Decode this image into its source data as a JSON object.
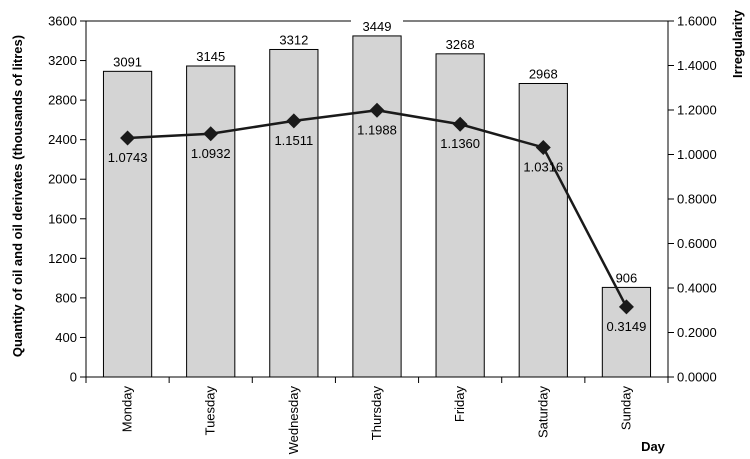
{
  "chart_data": {
    "type": "bar+line",
    "categories": [
      "Monday",
      "Tuesday",
      "Wednesday",
      "Thursday",
      "Friday",
      "Saturday",
      "Sunday"
    ],
    "series": [
      {
        "type": "bar",
        "axis": "left",
        "values": [
          3091,
          3145,
          3312,
          3449,
          3268,
          2968,
          906
        ]
      },
      {
        "type": "line",
        "axis": "right",
        "values": [
          1.0743,
          1.0932,
          1.1511,
          1.1988,
          1.136,
          1.0316,
          0.3149
        ]
      }
    ],
    "data_labels": {
      "bar": [
        "3091",
        "3145",
        "3312",
        "3449",
        "3268",
        "2968",
        "906"
      ],
      "line": [
        "1.0743",
        "1.0932",
        "1.1511",
        "1.1988",
        "1.1360",
        "1.0316",
        "0.3149"
      ]
    },
    "ylabel": "Quantity of oil and oil derivates (thousands of litres)",
    "y2label": "Irregularity",
    "xlabel": "Day",
    "ylim": [
      0,
      3600
    ],
    "y2lim": [
      0,
      1.6
    ],
    "yticks": [
      "0",
      "400",
      "800",
      "1200",
      "1600",
      "2000",
      "2400",
      "2800",
      "3200",
      "3600"
    ],
    "y2ticks": [
      "0.0000",
      "0.2000",
      "0.4000",
      "0.6000",
      "0.8000",
      "1.0000",
      "1.2000",
      "1.4000",
      "1.6000"
    ],
    "colors": {
      "bar_fill": "#d4d4d4",
      "bar_stroke": "#000000",
      "line": "#1a1a1a",
      "marker": "#1a1a1a"
    },
    "grid": false,
    "legend": "none"
  }
}
